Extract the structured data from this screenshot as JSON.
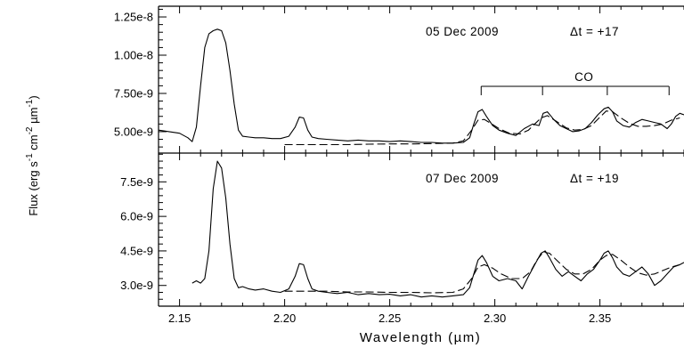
{
  "chart_data": {
    "type": "line",
    "x_label": "Wavelength (µm)",
    "y_label": "Flux (erg s-1 cm-2 µm-1)",
    "y_label_parts": {
      "base": "Flux (erg s",
      "e1": "-1",
      "mid1": " cm",
      "e2": "-2",
      "mid2": " µm",
      "e3": "-1",
      "end": ")"
    },
    "x_ticks": [
      "2.15",
      "2.20",
      "2.25",
      "2.30",
      "2.35"
    ],
    "x_range": [
      2.14,
      2.39
    ],
    "panels": [
      {
        "date": "05 Dec 2009",
        "delta_t": "Δt = +17",
        "band_label": "CO",
        "band_heads_um": [
          2.2935,
          2.3227,
          2.3535,
          2.3829
        ],
        "y_ticks": [
          "1.25e-8",
          "1.00e-8",
          "7.50e-9",
          "5.00e-9"
        ],
        "y_tick_values": [
          1.25e-08,
          1e-08,
          7.5e-09,
          5e-09
        ],
        "y_range": [
          3.6e-09,
          1.32e-08
        ],
        "series": [
          {
            "style": "solid",
            "x": [
              2.14,
              2.145,
              2.15,
              2.154,
              2.156,
              2.158,
              2.16,
              2.162,
              2.164,
              2.166,
              2.168,
              2.17,
              2.172,
              2.174,
              2.176,
              2.178,
              2.18,
              2.183,
              2.186,
              2.19,
              2.194,
              2.198,
              2.202,
              2.205,
              2.207,
              2.209,
              2.211,
              2.213,
              2.216,
              2.22,
              2.225,
              2.23,
              2.235,
              2.24,
              2.245,
              2.25,
              2.255,
              2.26,
              2.265,
              2.27,
              2.275,
              2.28,
              2.285,
              2.288,
              2.29,
              2.292,
              2.294,
              2.296,
              2.299,
              2.302,
              2.306,
              2.31,
              2.314,
              2.318,
              2.321,
              2.323,
              2.325,
              2.328,
              2.331,
              2.334,
              2.337,
              2.34,
              2.343,
              2.346,
              2.349,
              2.352,
              2.354,
              2.356,
              2.358,
              2.361,
              2.364,
              2.367,
              2.37,
              2.373,
              2.376,
              2.379,
              2.382,
              2.384,
              2.386,
              2.388,
              2.39
            ],
            "y": [
              5.1e-09,
              5e-09,
              4.9e-09,
              4.6e-09,
              4.35e-09,
              5.3e-09,
              8e-09,
              1.05e-08,
              1.14e-08,
              1.16e-08,
              1.17e-08,
              1.16e-08,
              1.08e-08,
              9e-09,
              6.8e-09,
              5.1e-09,
              4.7e-09,
              4.65e-09,
              4.6e-09,
              4.6e-09,
              4.55e-09,
              4.55e-09,
              4.7e-09,
              5.3e-09,
              5.95e-09,
              5.9e-09,
              5.1e-09,
              4.65e-09,
              4.55e-09,
              4.5e-09,
              4.45e-09,
              4.4e-09,
              4.45e-09,
              4.4e-09,
              4.4e-09,
              4.35e-09,
              4.4e-09,
              4.35e-09,
              4.3e-09,
              4.3e-09,
              4.25e-09,
              4.25e-09,
              4.3e-09,
              4.6e-09,
              5.5e-09,
              6.3e-09,
              6.45e-09,
              6e-09,
              5.4e-09,
              5.1e-09,
              4.9e-09,
              4.75e-09,
              5.2e-09,
              5.5e-09,
              5.4e-09,
              6.2e-09,
              6.3e-09,
              5.8e-09,
              5.4e-09,
              5.2e-09,
              5e-09,
              5.05e-09,
              5.2e-09,
              5.6e-09,
              6.1e-09,
              6.5e-09,
              6.6e-09,
              6.3e-09,
              5.7e-09,
              5.4e-09,
              5.3e-09,
              5.6e-09,
              5.8e-09,
              5.7e-09,
              5.6e-09,
              5.5e-09,
              5.2e-09,
              5.5e-09,
              6e-09,
              6.2e-09,
              6.1e-09
            ]
          },
          {
            "style": "dashed",
            "x": [
              2.2,
              2.21,
              2.22,
              2.23,
              2.24,
              2.25,
              2.26,
              2.27,
              2.28,
              2.285,
              2.289,
              2.292,
              2.295,
              2.298,
              2.302,
              2.307,
              2.312,
              2.316,
              2.319,
              2.322,
              2.325,
              2.329,
              2.334,
              2.338,
              2.342,
              2.346,
              2.35,
              2.353,
              2.356,
              2.36,
              2.364,
              2.368,
              2.372,
              2.376,
              2.38,
              2.384,
              2.388
            ],
            "y": [
              4.15e-09,
              4.15e-09,
              4.15e-09,
              4.15e-09,
              4.18e-09,
              4.2e-09,
              4.2e-09,
              4.22e-09,
              4.25e-09,
              4.4e-09,
              5.1e-09,
              5.75e-09,
              5.8e-09,
              5.55e-09,
              5.2e-09,
              4.9e-09,
              4.85e-09,
              5.1e-09,
              5.5e-09,
              5.9e-09,
              6.05e-09,
              5.7e-09,
              5.25e-09,
              5.1e-09,
              5.15e-09,
              5.4e-09,
              5.95e-09,
              6.35e-09,
              6.3e-09,
              5.9e-09,
              5.55e-09,
              5.35e-09,
              5.35e-09,
              5.4e-09,
              5.5e-09,
              5.75e-09,
              5.9e-09
            ]
          }
        ]
      },
      {
        "date": "07 Dec 2009",
        "delta_t": "Δt = +19",
        "y_ticks": [
          "7.5e-9",
          "6.0e-9",
          "4.5e-9",
          "3.0e-9"
        ],
        "y_tick_values": [
          7.5e-09,
          6e-09,
          4.5e-09,
          3e-09
        ],
        "y_range": [
          2.1e-09,
          8.75e-09
        ],
        "series": [
          {
            "style": "solid",
            "x": [
              2.156,
              2.158,
              2.16,
              2.162,
              2.164,
              2.166,
              2.168,
              2.17,
              2.172,
              2.174,
              2.176,
              2.178,
              2.18,
              2.183,
              2.186,
              2.19,
              2.194,
              2.198,
              2.202,
              2.205,
              2.207,
              2.209,
              2.211,
              2.213,
              2.216,
              2.22,
              2.225,
              2.23,
              2.235,
              2.24,
              2.245,
              2.25,
              2.255,
              2.26,
              2.265,
              2.27,
              2.275,
              2.28,
              2.285,
              2.288,
              2.29,
              2.292,
              2.294,
              2.296,
              2.299,
              2.302,
              2.306,
              2.31,
              2.313,
              2.316,
              2.319,
              2.322,
              2.324,
              2.326,
              2.329,
              2.332,
              2.335,
              2.338,
              2.341,
              2.344,
              2.347,
              2.35,
              2.352,
              2.354,
              2.356,
              2.358,
              2.361,
              2.364,
              2.367,
              2.37,
              2.373,
              2.376,
              2.379,
              2.382,
              2.385,
              2.388,
              2.39
            ],
            "y": [
              3.1e-09,
              3.2e-09,
              3.1e-09,
              3.3e-09,
              4.5e-09,
              7.2e-09,
              8.4e-09,
              8.1e-09,
              6.8e-09,
              4.8e-09,
              3.3e-09,
              2.9e-09,
              2.95e-09,
              2.85e-09,
              2.8e-09,
              2.85e-09,
              2.75e-09,
              2.7e-09,
              2.85e-09,
              3.4e-09,
              3.95e-09,
              3.9e-09,
              3.3e-09,
              2.85e-09,
              2.75e-09,
              2.7e-09,
              2.65e-09,
              2.7e-09,
              2.6e-09,
              2.65e-09,
              2.6e-09,
              2.62e-09,
              2.55e-09,
              2.6e-09,
              2.5e-09,
              2.55e-09,
              2.5e-09,
              2.55e-09,
              2.6e-09,
              2.9e-09,
              3.5e-09,
              4.1e-09,
              4.3e-09,
              4e-09,
              3.4e-09,
              3.2e-09,
              3.3e-09,
              3.2e-09,
              2.85e-09,
              3.4e-09,
              3.9e-09,
              4.4e-09,
              4.5e-09,
              4.2e-09,
              3.7e-09,
              3.4e-09,
              3.6e-09,
              3.4e-09,
              3.2e-09,
              3.5e-09,
              3.7e-09,
              4.1e-09,
              4.4e-09,
              4.5e-09,
              4.2e-09,
              3.8e-09,
              3.5e-09,
              3.4e-09,
              3.6e-09,
              3.8e-09,
              3.5e-09,
              3e-09,
              3.2e-09,
              3.5e-09,
              3.8e-09,
              3.9e-09,
              4e-09
            ]
          },
          {
            "style": "dashed",
            "x": [
              2.2,
              2.21,
              2.22,
              2.23,
              2.24,
              2.25,
              2.26,
              2.27,
              2.28,
              2.285,
              2.289,
              2.292,
              2.295,
              2.299,
              2.303,
              2.308,
              2.313,
              2.317,
              2.32,
              2.323,
              2.326,
              2.33,
              2.334,
              2.338,
              2.342,
              2.346,
              2.35,
              2.353,
              2.356,
              2.36,
              2.364,
              2.368,
              2.372,
              2.376,
              2.38,
              2.384,
              2.388
            ],
            "y": [
              2.75e-09,
              2.75e-09,
              2.75e-09,
              2.72e-09,
              2.72e-09,
              2.7e-09,
              2.7e-09,
              2.68e-09,
              2.7e-09,
              2.85e-09,
              3.3e-09,
              3.8e-09,
              3.9e-09,
              3.75e-09,
              3.5e-09,
              3.3e-09,
              3.3e-09,
              3.6e-09,
              4.1e-09,
              4.45e-09,
              4.4e-09,
              4.05e-09,
              3.7e-09,
              3.5e-09,
              3.5e-09,
              3.7e-09,
              4.1e-09,
              4.3e-09,
              4.35e-09,
              4.1e-09,
              3.8e-09,
              3.55e-09,
              3.45e-09,
              3.5e-09,
              3.65e-09,
              3.8e-09,
              3.9e-09
            ]
          }
        ]
      }
    ]
  }
}
